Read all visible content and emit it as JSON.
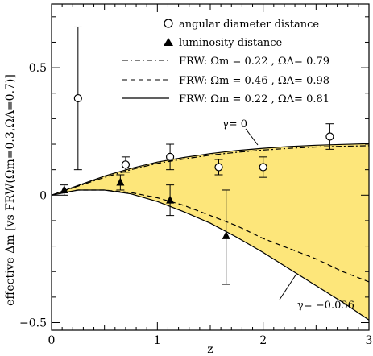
{
  "chart_data": {
    "type": "scatter",
    "xlabel": "z",
    "ylabel": "effective Δm  [vs FRW(Ωm=0.3,ΩΛ=0.7)]",
    "xlim": [
      0,
      3
    ],
    "ylim": [
      -0.53,
      0.75
    ],
    "xticks": [
      0,
      1,
      2,
      3
    ],
    "xtick_labels": [
      "0",
      "1",
      "2",
      "3"
    ],
    "yticks": [
      -0.5,
      0,
      0.5
    ],
    "ytick_labels": [
      "−0.5",
      "0",
      "0.5"
    ],
    "legend_placement": "top-right",
    "shaded_region_color": "#fde67a",
    "series": [
      {
        "name": "angular diameter distance",
        "marker": "open-circle",
        "x": [
          0.25,
          0.7,
          1.12,
          1.58,
          2.0,
          2.63
        ],
        "y": [
          0.38,
          0.12,
          0.15,
          0.11,
          0.11,
          0.23
        ],
        "yerr_low": [
          0.28,
          0.03,
          0.05,
          0.03,
          0.04,
          0.05
        ],
        "yerr_high": [
          0.28,
          0.03,
          0.05,
          0.03,
          0.04,
          0.05
        ]
      },
      {
        "name": "luminosity distance",
        "marker": "filled-triangle",
        "x": [
          0.12,
          0.65,
          1.12,
          1.65
        ],
        "y": [
          0.02,
          0.05,
          -0.02,
          -0.16
        ],
        "yerr_low": [
          0.02,
          0.03,
          0.06,
          0.19
        ],
        "yerr_high": [
          0.02,
          0.03,
          0.06,
          0.18
        ]
      },
      {
        "name": "FRW: Ωm = 0.22 , ΩΛ= 0.79",
        "style": "dash-dot",
        "x": [
          0,
          0.25,
          0.5,
          0.75,
          1.0,
          1.25,
          1.5,
          1.75,
          2.0,
          2.25,
          2.5,
          2.75,
          3.0
        ],
        "y": [
          0,
          0.035,
          0.07,
          0.1,
          0.125,
          0.142,
          0.157,
          0.168,
          0.177,
          0.184,
          0.189,
          0.192,
          0.194
        ]
      },
      {
        "name": "FRW: Ωm = 0.46 , ΩΛ= 0.98",
        "style": "dashed",
        "x": [
          0,
          0.25,
          0.5,
          0.75,
          1.0,
          1.25,
          1.5,
          1.75,
          2.0,
          2.25,
          2.5,
          2.75,
          3.0
        ],
        "y": [
          0,
          0.02,
          0.02,
          0.01,
          -0.01,
          -0.04,
          -0.08,
          -0.12,
          -0.17,
          -0.21,
          -0.25,
          -0.3,
          -0.34
        ]
      },
      {
        "name": "FRW: Ωm = 0.22 , ΩΛ= 0.81",
        "style": "solid",
        "x": [
          0,
          0.25,
          0.5,
          0.75,
          1.0,
          1.25,
          1.5,
          1.75,
          2.0,
          2.25,
          2.5,
          2.75,
          3.0
        ],
        "y": [
          0,
          0.038,
          0.075,
          0.105,
          0.13,
          0.148,
          0.163,
          0.175,
          0.184,
          0.191,
          0.196,
          0.199,
          0.202
        ]
      },
      {
        "name": "γ= −0.036 boundary",
        "style": "solid",
        "x": [
          0,
          0.25,
          0.5,
          0.75,
          1.0,
          1.25,
          1.5,
          1.75,
          2.0,
          2.25,
          2.5,
          2.75,
          3.0
        ],
        "y": [
          0,
          0.02,
          0.02,
          0.005,
          -0.025,
          -0.065,
          -0.11,
          -0.165,
          -0.225,
          -0.29,
          -0.355,
          -0.42,
          -0.49
        ]
      }
    ],
    "annotations": [
      {
        "text": "γ=  0",
        "x": 0.92,
        "y": 0.245
      },
      {
        "text": "γ=  −0.036",
        "x": 1.8,
        "y": -0.44
      }
    ]
  }
}
